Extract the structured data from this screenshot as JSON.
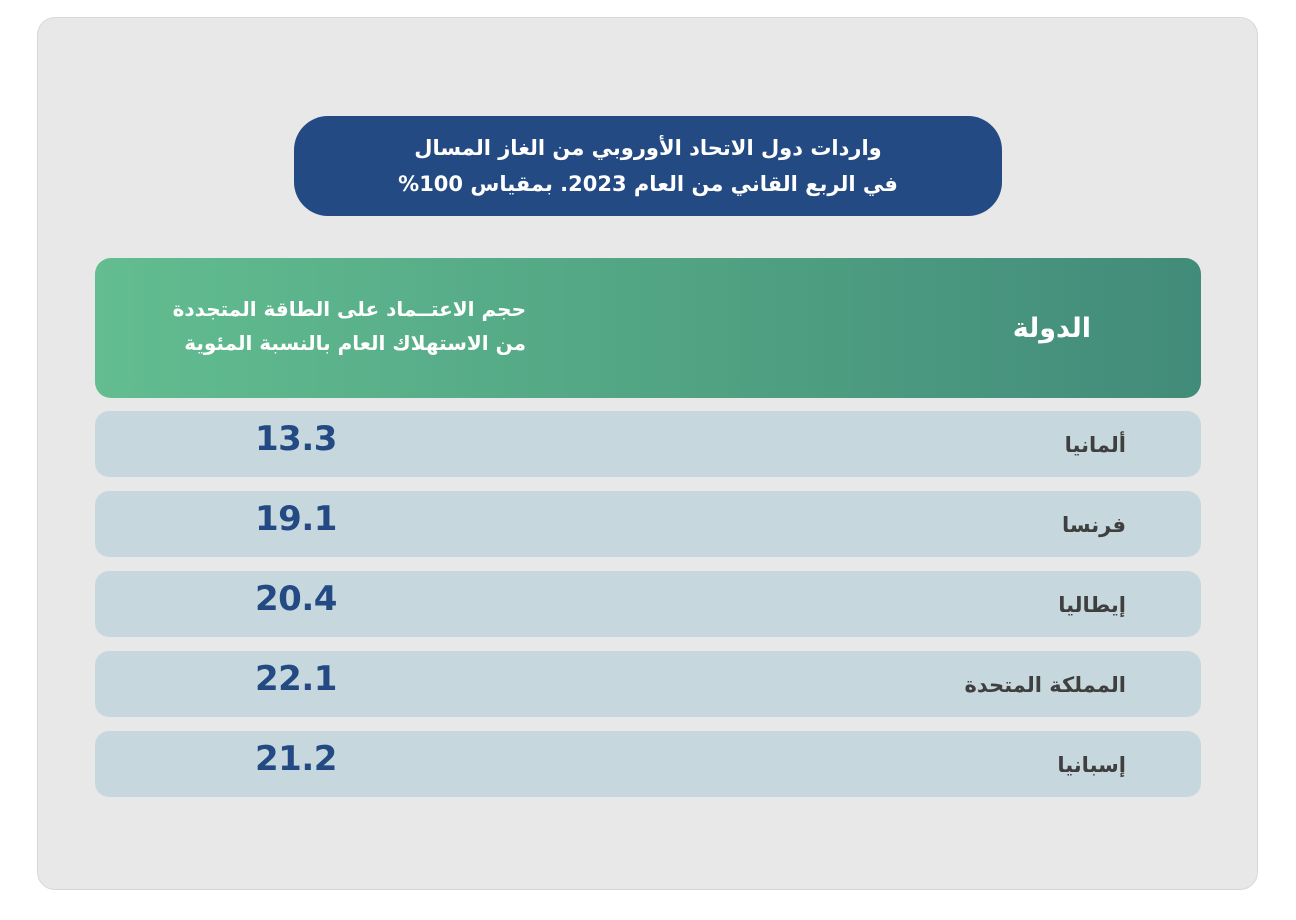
{
  "title": {
    "line1": "واردات دول الاتحاد الأوروبي من الغاز المسال",
    "line2": "في الربع القاني من العام 2023. بمقياس 100%"
  },
  "header": {
    "country_label": "الدولة",
    "metric_line1": "حجم الاعتــماد على الطاقة المتجددة",
    "metric_line2": "من الاستهلاك العام بالنسبة المئوية"
  },
  "rows": [
    {
      "country": "ألمانيا",
      "value": "13.3"
    },
    {
      "country": "فرنسا",
      "value": "19.1"
    },
    {
      "country": "إيطاليا",
      "value": "20.4"
    },
    {
      "country": "المملكة المتحدة",
      "value": "22.1"
    },
    {
      "country": "إسبانيا",
      "value": "21.2"
    }
  ],
  "colors": {
    "title_bg": "#234a83",
    "header_gradient_start": "#62bd90",
    "header_gradient_end": "#428b7a",
    "row_bg": "#c6d8de",
    "value_text": "#234a83"
  },
  "chart_data": {
    "type": "table",
    "title": "واردات دول الاتحاد الأوروبي من الغاز المسال في الربع القاني من العام 2023. بمقياس 100%",
    "columns": [
      "الدولة",
      "حجم الاعتــماد على الطاقة المتجددة من الاستهلاك العام بالنسبة المئوية"
    ],
    "categories": [
      "ألمانيا",
      "فرنسا",
      "إيطاليا",
      "المملكة المتحدة",
      "إسبانيا"
    ],
    "values": [
      13.3,
      19.1,
      20.4,
      22.1,
      21.2
    ]
  }
}
